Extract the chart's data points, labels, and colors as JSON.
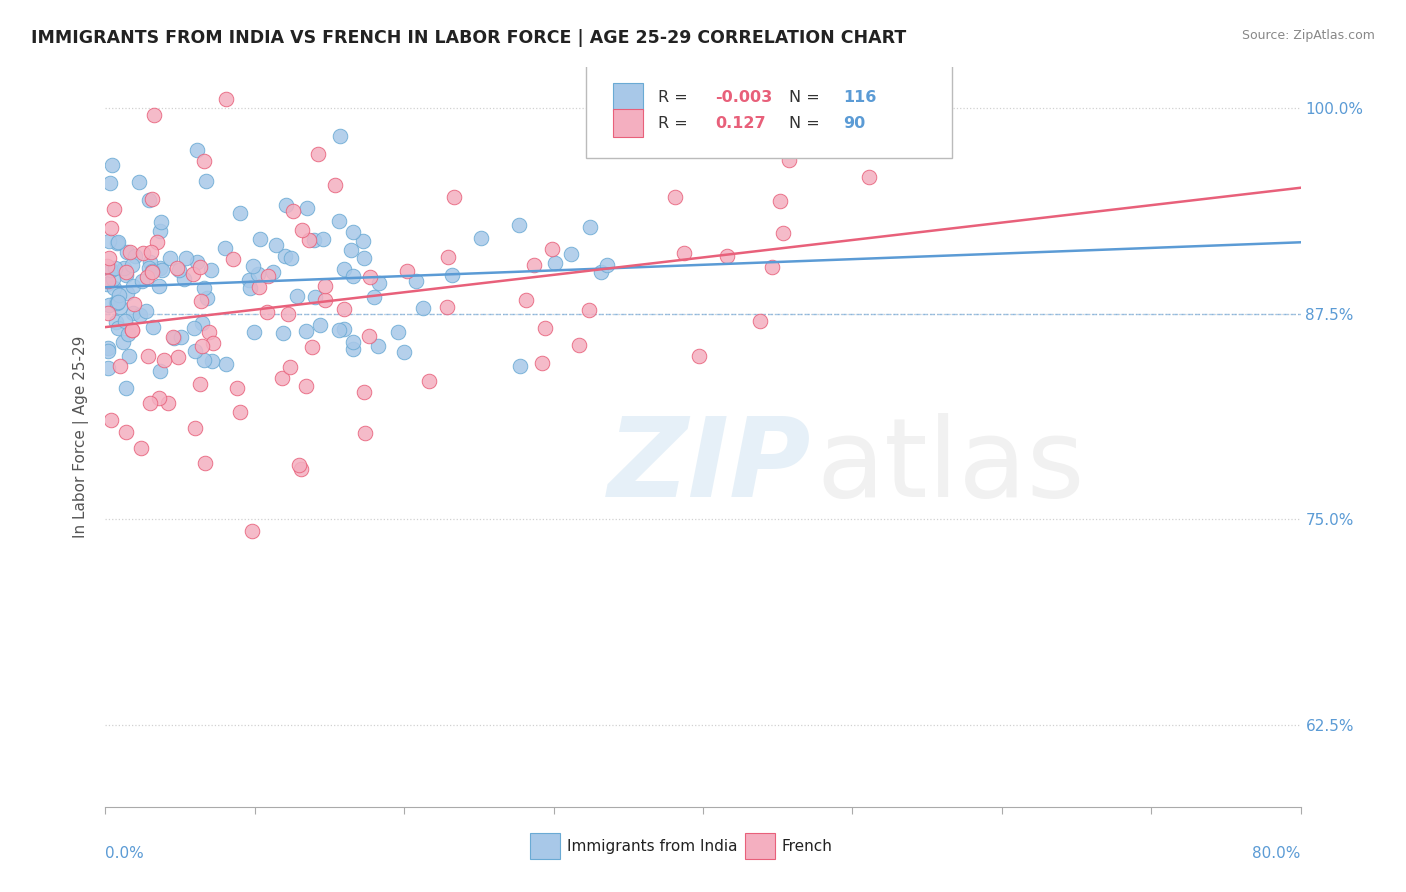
{
  "title": "IMMIGRANTS FROM INDIA VS FRENCH IN LABOR FORCE | AGE 25-29 CORRELATION CHART",
  "source": "Source: ZipAtlas.com",
  "ylabel": "In Labor Force | Age 25-29",
  "xmin": 0.0,
  "xmax": 0.8,
  "ymin": 0.575,
  "ymax": 1.025,
  "yticks": [
    0.625,
    0.75,
    0.875,
    1.0
  ],
  "ytick_labels": [
    "62.5%",
    "75.0%",
    "87.5%",
    "100.0%"
  ],
  "hline_y": 0.875,
  "india_R": -0.003,
  "india_N": 116,
  "french_R": 0.127,
  "french_N": 90,
  "india_color": "#a8c8e8",
  "india_edge_color": "#6aaad4",
  "french_color": "#f4afc0",
  "french_edge_color": "#e8607a",
  "india_line_color": "#5b9bd5",
  "french_line_color": "#e8607a",
  "legend_label_india": "Immigrants from India",
  "legend_label_french": "French",
  "axis_color": "#5b9bd5",
  "grid_color": "#cccccc",
  "title_color": "#222222",
  "source_color": "#888888"
}
